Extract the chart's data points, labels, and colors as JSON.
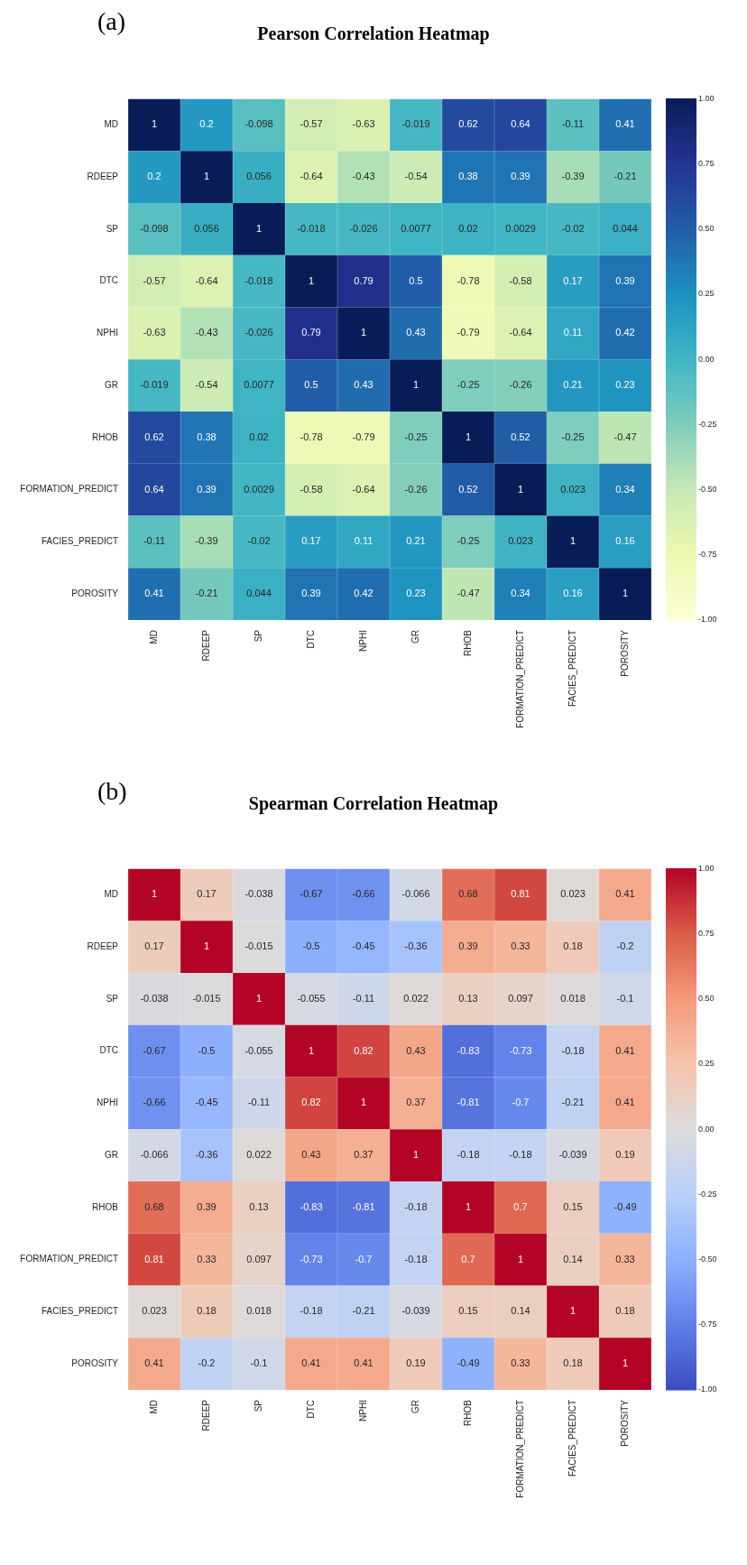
{
  "chart_data": [
    {
      "type": "heatmap",
      "title": "Pearson Correlation Heatmap",
      "annotations": [
        "(a)"
      ],
      "categories": [
        "MD",
        "RDEEP",
        "SP",
        "DTC",
        "NPHI",
        "GR",
        "RHOB",
        "FORMATION_PREDICT",
        "FACIES_PREDICT",
        "POROSITY"
      ],
      "y_categories": [
        "MD",
        "RDEEP",
        "SP",
        "DTC",
        "NPHI",
        "GR",
        "RHOB",
        "FORMATION_PREDICT",
        "FACIES_PREDICT",
        "POROSITY"
      ],
      "cells": [
        [
          1,
          0.2,
          -0.098,
          -0.57,
          -0.63,
          -0.019,
          0.62,
          0.64,
          -0.11,
          0.41
        ],
        [
          0.2,
          1,
          0.056,
          -0.64,
          -0.43,
          -0.54,
          0.38,
          0.39,
          -0.39,
          -0.21
        ],
        [
          -0.098,
          0.056,
          1,
          -0.018,
          -0.026,
          0.0077,
          0.02,
          0.0029,
          -0.02,
          0.044
        ],
        [
          -0.57,
          -0.64,
          -0.018,
          1,
          0.79,
          0.5,
          -0.78,
          -0.58,
          0.17,
          0.39
        ],
        [
          -0.63,
          -0.43,
          -0.026,
          0.79,
          1,
          0.43,
          -0.79,
          -0.64,
          0.11,
          0.42
        ],
        [
          -0.019,
          -0.54,
          0.0077,
          0.5,
          0.43,
          1,
          -0.25,
          -0.26,
          0.21,
          0.23
        ],
        [
          0.62,
          0.38,
          0.02,
          -0.78,
          -0.79,
          -0.25,
          1,
          0.52,
          -0.25,
          -0.47
        ],
        [
          0.64,
          0.39,
          0.0029,
          -0.58,
          -0.64,
          -0.26,
          0.52,
          1,
          0.023,
          0.34
        ],
        [
          -0.11,
          -0.39,
          -0.02,
          0.17,
          0.11,
          0.21,
          -0.25,
          0.023,
          1,
          0.16
        ],
        [
          0.41,
          -0.21,
          0.044,
          0.39,
          0.42,
          0.23,
          -0.47,
          0.34,
          0.16,
          1
        ]
      ],
      "data_labels": true,
      "clim": [
        -1,
        1
      ],
      "cticks": [
        {
          "value": 1,
          "label": "1.00"
        },
        {
          "value": 0.75,
          "label": "0.75"
        },
        {
          "value": 0.5,
          "label": "0.50"
        },
        {
          "value": 0.25,
          "label": "0.25"
        },
        {
          "value": 0,
          "label": "0.00"
        },
        {
          "value": -0.25,
          "label": "-0.25"
        },
        {
          "value": -0.5,
          "label": "-0.50"
        },
        {
          "value": -0.75,
          "label": "-0.75"
        },
        {
          "value": -1,
          "label": "-1.00"
        }
      ],
      "colors": [
        "#ffffd9",
        "#edf8b1",
        "#c7e9b4",
        "#7fcdbb",
        "#41b6c4",
        "#1d91c0",
        "#225ea8",
        "#253494",
        "#081d58"
      ]
    },
    {
      "type": "heatmap",
      "title": "Spearman Correlation Heatmap",
      "annotations": [
        "(b)"
      ],
      "categories": [
        "MD",
        "RDEEP",
        "SP",
        "DTC",
        "NPHI",
        "GR",
        "RHOB",
        "FORMATION_PREDICT",
        "FACIES_PREDICT",
        "POROSITY"
      ],
      "y_categories": [
        "MD",
        "RDEEP",
        "SP",
        "DTC",
        "NPHI",
        "GR",
        "RHOB",
        "FORMATION_PREDICT",
        "FACIES_PREDICT",
        "POROSITY"
      ],
      "cells": [
        [
          1,
          0.17,
          -0.038,
          -0.67,
          -0.66,
          -0.066,
          0.68,
          0.81,
          0.023,
          0.41
        ],
        [
          0.17,
          1,
          -0.015,
          -0.5,
          -0.45,
          -0.36,
          0.39,
          0.33,
          0.18,
          -0.2
        ],
        [
          -0.038,
          -0.015,
          1,
          -0.055,
          -0.11,
          0.022,
          0.13,
          0.097,
          0.018,
          -0.1
        ],
        [
          -0.67,
          -0.5,
          -0.055,
          1,
          0.82,
          0.43,
          -0.83,
          -0.73,
          -0.18,
          0.41
        ],
        [
          -0.66,
          -0.45,
          -0.11,
          0.82,
          1,
          0.37,
          -0.81,
          -0.7,
          -0.21,
          0.41
        ],
        [
          -0.066,
          -0.36,
          0.022,
          0.43,
          0.37,
          1,
          -0.18,
          -0.18,
          -0.039,
          0.19
        ],
        [
          0.68,
          0.39,
          0.13,
          -0.83,
          -0.81,
          -0.18,
          1,
          0.7,
          0.15,
          -0.49
        ],
        [
          0.81,
          0.33,
          0.097,
          -0.73,
          -0.7,
          -0.18,
          0.7,
          1,
          0.14,
          0.33
        ],
        [
          0.023,
          0.18,
          0.018,
          -0.18,
          -0.21,
          -0.039,
          0.15,
          0.14,
          1,
          0.18
        ],
        [
          0.41,
          -0.2,
          -0.1,
          0.41,
          0.41,
          0.19,
          -0.49,
          0.33,
          0.18,
          1
        ]
      ],
      "data_labels": true,
      "clim": [
        -1,
        1
      ],
      "cticks": [
        {
          "value": 1,
          "label": "1.00"
        },
        {
          "value": 0.75,
          "label": "0.75"
        },
        {
          "value": 0.5,
          "label": "0.50"
        },
        {
          "value": 0.25,
          "label": "0.25"
        },
        {
          "value": 0,
          "label": "0.00"
        },
        {
          "value": -0.25,
          "label": "-0.25"
        },
        {
          "value": -0.5,
          "label": "-0.50"
        },
        {
          "value": -0.75,
          "label": "-0.75"
        },
        {
          "value": -1,
          "label": "-1.00"
        }
      ],
      "colors": [
        "#3b4cc0",
        "#5f7fe8",
        "#8db0fe",
        "#b9d0f9",
        "#dddcdc",
        "#f5c4ac",
        "#f49a7b",
        "#dc5d4a",
        "#b40426"
      ]
    }
  ]
}
